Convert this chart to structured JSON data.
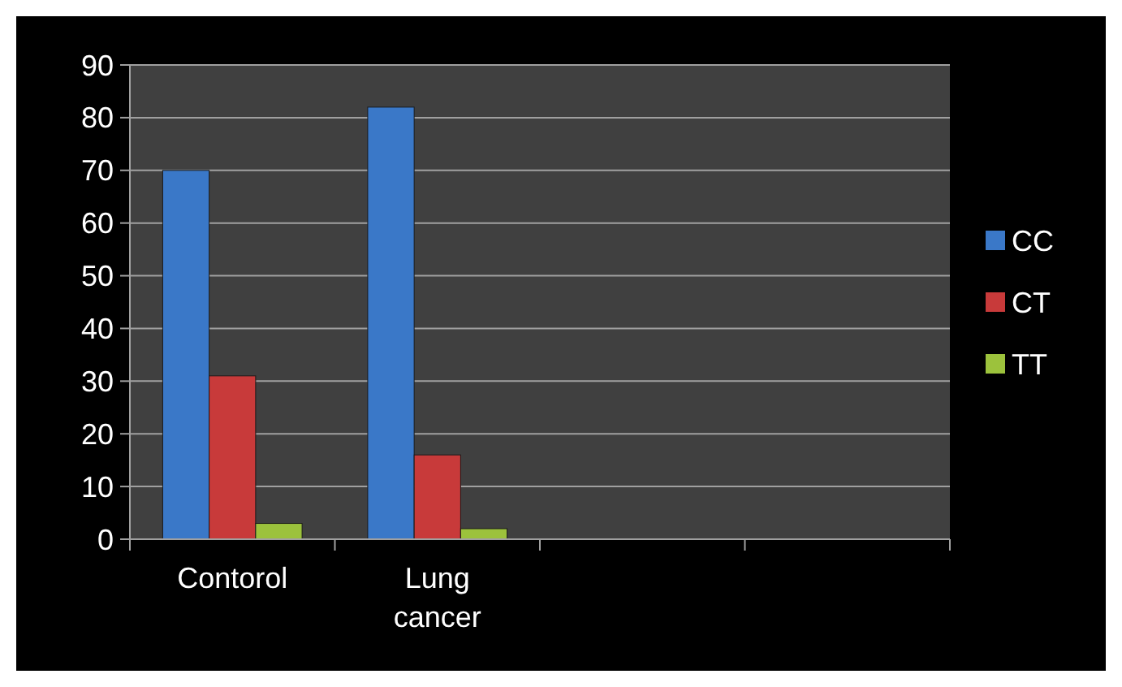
{
  "chart_data": {
    "type": "bar",
    "categories": [
      "Contorol",
      "Lung cancer",
      null,
      null
    ],
    "series": [
      {
        "name": "CC",
        "color": "#3a78c8",
        "values": [
          70,
          82,
          null,
          null
        ]
      },
      {
        "name": "CT",
        "color": "#c83a3a",
        "values": [
          31,
          16,
          null,
          null
        ]
      },
      {
        "name": "TT",
        "color": "#9cc23c",
        "values": [
          3,
          2,
          null,
          null
        ]
      }
    ],
    "ylim": [
      0,
      90
    ],
    "yticks": [
      0,
      10,
      20,
      30,
      40,
      50,
      60,
      70,
      80,
      90
    ],
    "grid": "y",
    "legend": "right"
  }
}
